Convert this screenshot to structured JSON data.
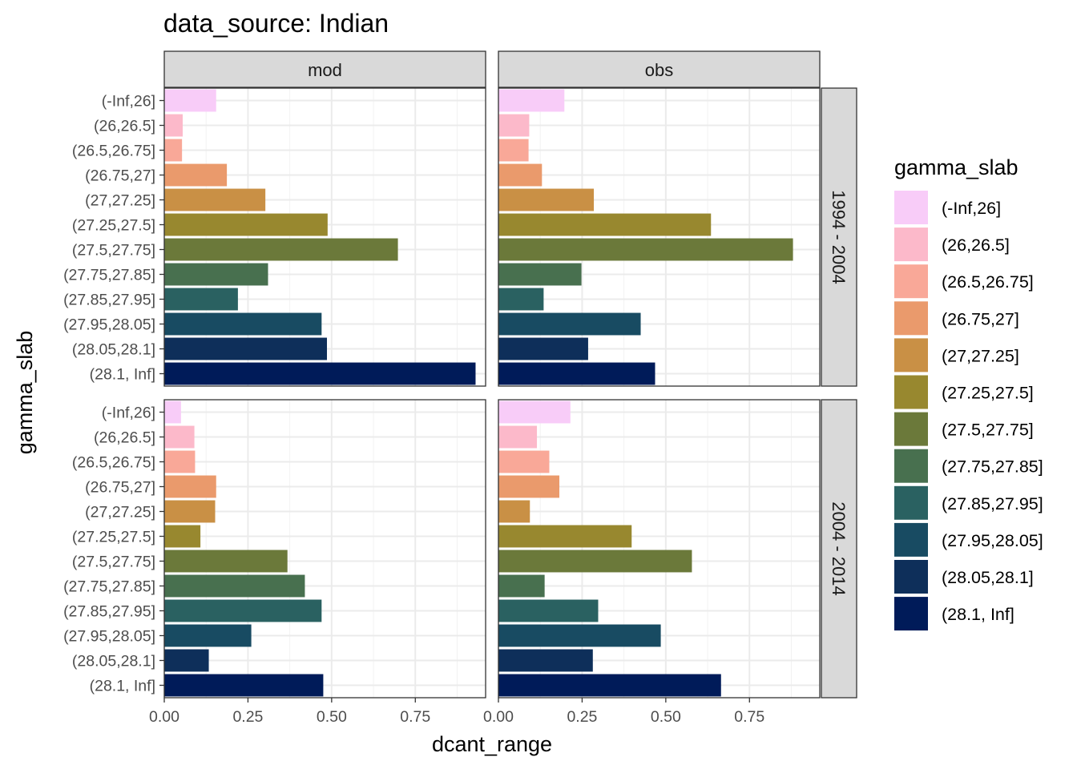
{
  "chart_data": {
    "type": "bar",
    "orientation": "horizontal",
    "title": "data_source: Indian",
    "xlabel": "dcant_range",
    "ylabel": "gamma_slab",
    "xlim": [
      0,
      0.96
    ],
    "x_ticks": [
      "0.00",
      "0.25",
      "0.50",
      "0.75"
    ],
    "x_tick_values": [
      0,
      0.25,
      0.5,
      0.75
    ],
    "grid": true,
    "legend_position": "right",
    "legend_title": "gamma_slab",
    "facet_columns": [
      "mod",
      "obs"
    ],
    "facet_rows": [
      "1994 - 2004",
      "2004 - 2014"
    ],
    "categories": [
      "(-Inf,26]",
      "(26,26.5]",
      "(26.5,26.75]",
      "(26.75,27]",
      "(27,27.25]",
      "(27.25,27.5]",
      "(27.5,27.75]",
      "(27.75,27.85]",
      "(27.85,27.95]",
      "(27.95,28.05]",
      "(28.05,28.1]",
      "(28.1, Inf]"
    ],
    "colors": [
      "#F8CCF8",
      "#FCB9CA",
      "#F9A898",
      "#EA9A6C",
      "#C99045",
      "#98882F",
      "#6B793A",
      "#48704F",
      "#2A6161",
      "#184B62",
      "#0E2F5A",
      "#001B59"
    ],
    "panels": [
      {
        "column": "mod",
        "row": "1994 - 2004",
        "values": [
          0.155,
          0.055,
          0.053,
          0.187,
          0.302,
          0.488,
          0.698,
          0.31,
          0.22,
          0.47,
          0.486,
          0.93
        ]
      },
      {
        "column": "obs",
        "row": "1994 - 2004",
        "values": [
          0.197,
          0.092,
          0.09,
          0.13,
          0.285,
          0.635,
          0.88,
          0.248,
          0.135,
          0.425,
          0.268,
          0.468
        ]
      },
      {
        "column": "mod",
        "row": "2004 - 2014",
        "values": [
          0.05,
          0.09,
          0.092,
          0.155,
          0.152,
          0.108,
          0.368,
          0.42,
          0.47,
          0.26,
          0.133,
          0.475
        ]
      },
      {
        "column": "obs",
        "row": "2004 - 2014",
        "values": [
          0.215,
          0.115,
          0.152,
          0.182,
          0.094,
          0.398,
          0.578,
          0.138,
          0.298,
          0.485,
          0.282,
          0.665
        ]
      }
    ]
  }
}
